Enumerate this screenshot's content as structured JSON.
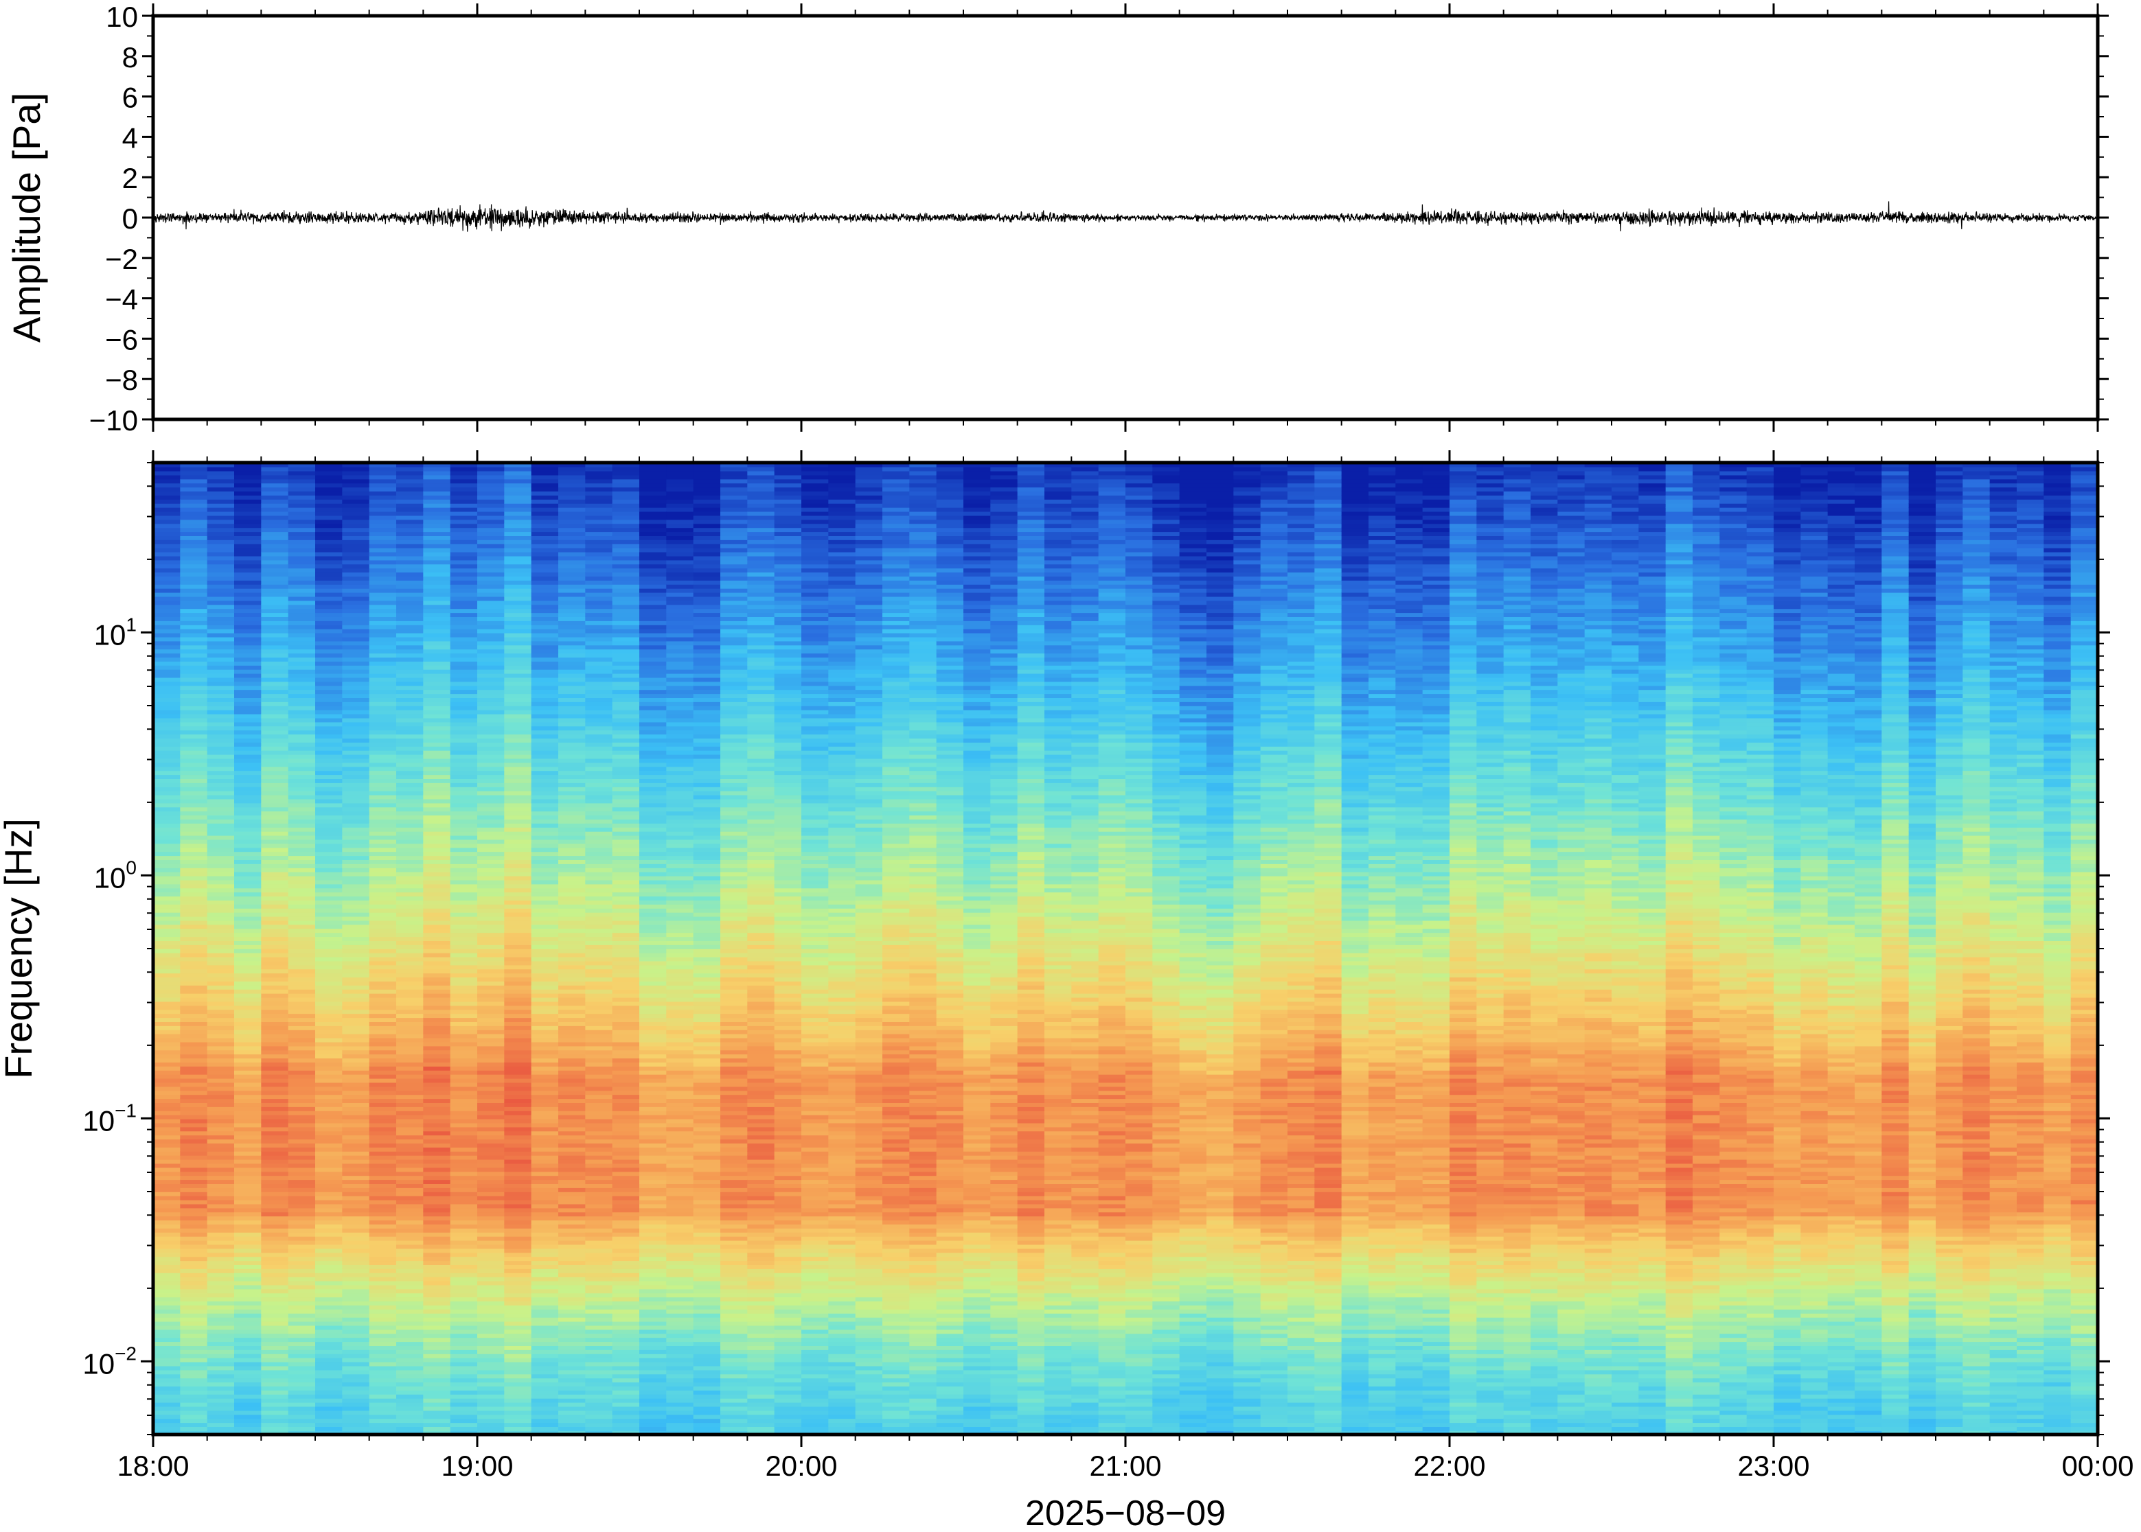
{
  "chart_data": [
    {
      "type": "line",
      "ylabel": "Amplitude [Pa]",
      "ylim": [
        -10,
        10
      ],
      "yticks": [
        10,
        8,
        6,
        4,
        2,
        0,
        -2,
        -4,
        -6,
        -8,
        -10
      ],
      "ytick_labels": [
        "10",
        "8",
        "6",
        "4",
        "2",
        "0",
        "−2",
        "−4",
        "−6",
        "−8",
        "−10"
      ],
      "x_range_hours": [
        18,
        24
      ],
      "series": [
        {
          "x_hours": [
            18.0,
            18.25,
            18.5,
            18.75,
            19.0,
            19.25,
            19.5,
            19.75,
            20.0,
            20.25,
            20.5,
            20.75,
            21.0,
            21.25,
            21.5,
            21.75,
            22.0,
            22.25,
            22.5,
            22.75,
            23.0,
            23.25,
            23.5,
            23.75,
            24.0
          ],
          "envelope_pa": [
            0.5,
            0.5,
            0.6,
            0.5,
            1.2,
            0.8,
            0.5,
            0.5,
            0.4,
            0.4,
            0.4,
            0.5,
            0.3,
            0.3,
            0.3,
            0.4,
            0.7,
            0.6,
            0.6,
            0.8,
            0.6,
            0.5,
            0.6,
            0.4,
            0.3
          ]
        }
      ]
    },
    {
      "type": "heatmap",
      "ylabel": "Frequency [Hz]",
      "yscale": "log",
      "ylim": [
        0.005,
        50
      ],
      "ytick_labels": [
        {
          "value": 10,
          "base": "10",
          "exp": "1"
        },
        {
          "value": 1,
          "base": "10",
          "exp": "0"
        },
        {
          "value": 0.1,
          "base": "10",
          "exp": "−1"
        },
        {
          "value": 0.01,
          "base": "10",
          "exp": "−2"
        }
      ],
      "xlabel": "2025−08−09",
      "xtick_labels": [
        "18:00",
        "19:00",
        "20:00",
        "21:00",
        "22:00",
        "23:00",
        "00:00"
      ],
      "colormap": "rainbow",
      "colormap_stops": [
        "#0a1fa8",
        "#2a6fe0",
        "#3cc0f5",
        "#6fe3d6",
        "#c8f28a",
        "#f7d06a",
        "#f59a52",
        "#e8503e"
      ],
      "energy_peak_hz": [
        0.04,
        0.15
      ],
      "notable_features": {
        "high_energy_near_19": "19:00",
        "quiet_column_near_21": "21:10"
      }
    }
  ]
}
